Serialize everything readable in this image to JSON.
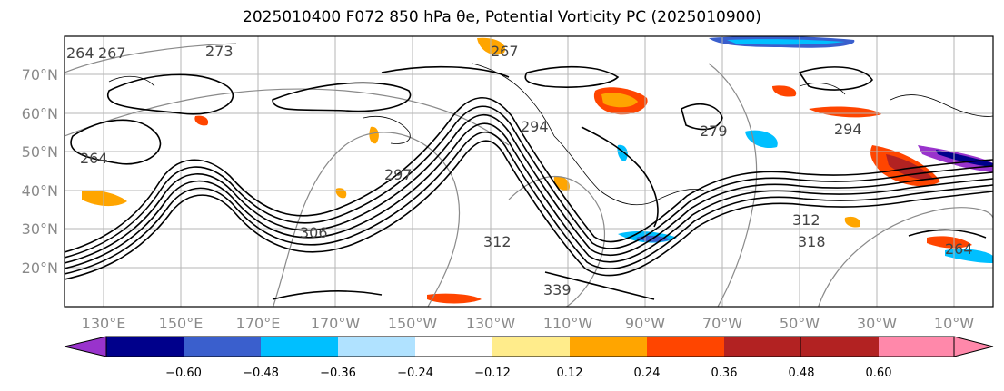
{
  "title": "2025010400 F072 850 hPa θe, Potential Vorticity PC (2025010900)",
  "lat_labels": [
    "70°N",
    "60°N",
    "50°N",
    "40°N",
    "30°N",
    "20°N"
  ],
  "lon_labels": [
    "130°E",
    "150°E",
    "170°E",
    "170°W",
    "150°W",
    "130°W",
    "110°W",
    "90°W",
    "70°W",
    "50°W",
    "30°W",
    "10°W"
  ],
  "colorbar": {
    "colors": [
      "#9933cc",
      "#00008b",
      "#3a5fcd",
      "#00bfff",
      "#b0e2ff",
      "#ffffff",
      "#ffec8b",
      "#ffa500",
      "#ff4500",
      "#b22222",
      "#ff88aa"
    ],
    "tick_labels": [
      "−0.60",
      "−0.48",
      "−0.36",
      "−0.24",
      "−0.12",
      "0.12",
      "0.24",
      "0.36",
      "0.48",
      "0.60"
    ]
  },
  "contour_labels": [
    "264",
    "267",
    "273",
    "264",
    "267",
    "294",
    "297",
    "279",
    "306",
    "312",
    "312",
    "318",
    "339",
    "294",
    "264"
  ]
}
